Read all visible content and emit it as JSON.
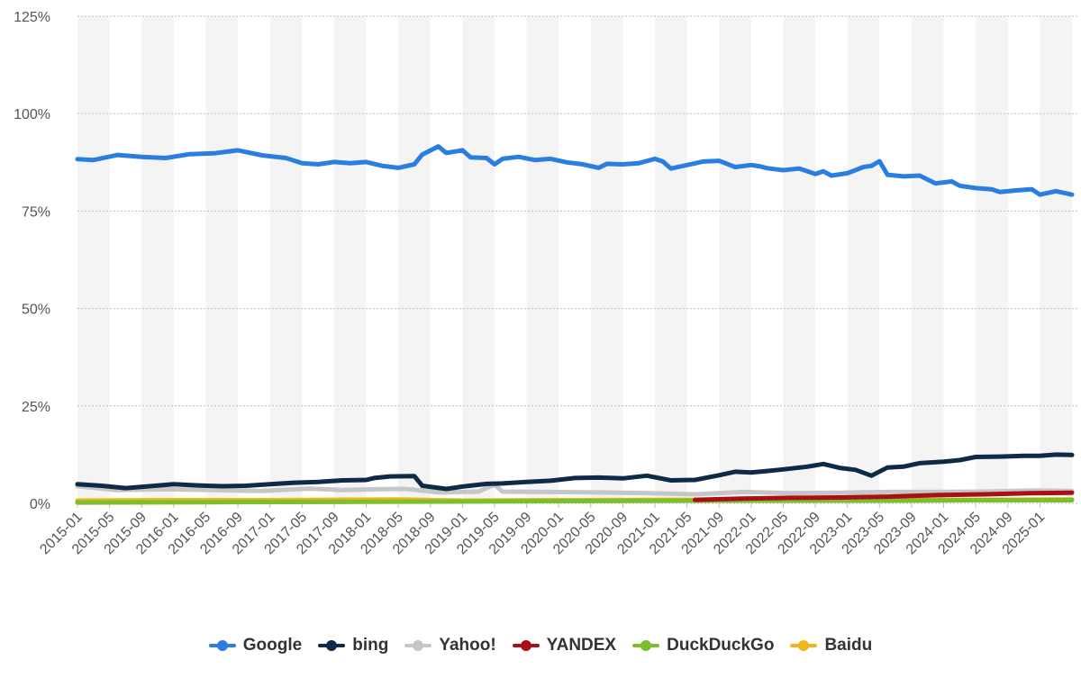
{
  "chart_data": {
    "type": "line",
    "title": "",
    "xlabel": "",
    "ylabel": "",
    "ylim": [
      0,
      125
    ],
    "y_ticks": [
      "0%",
      "25%",
      "50%",
      "75%",
      "100%",
      "125%"
    ],
    "y_tick_values": [
      0,
      25,
      50,
      75,
      100,
      125
    ],
    "x_range": [
      "2015-01",
      "2025-05"
    ],
    "x_tick_labels": [
      "2015-01",
      "2015-05",
      "2015-09",
      "2016-01",
      "2016-05",
      "2016-09",
      "2017-01",
      "2017-05",
      "2017-09",
      "2018-01",
      "2018-05",
      "2018-09",
      "2019-01",
      "2019-05",
      "2019-09",
      "2020-01",
      "2020-05",
      "2020-09",
      "2021-01",
      "2021-05",
      "2021-09",
      "2022-01",
      "2022-05",
      "2022-09",
      "2023-01",
      "2023-05",
      "2023-09",
      "2024-01",
      "2024-05",
      "2024-09",
      "2025-01"
    ],
    "grid": "horizontal dotted",
    "legend_position": "bottom",
    "series": [
      {
        "name": "Google",
        "color": "#2a7de1",
        "points": [
          [
            "2015-01",
            88.3
          ],
          [
            "2015-03",
            88.1
          ],
          [
            "2015-06",
            89.4
          ],
          [
            "2015-09",
            88.9
          ],
          [
            "2015-12",
            88.6
          ],
          [
            "2016-03",
            89.6
          ],
          [
            "2016-06",
            89.8
          ],
          [
            "2016-09",
            90.6
          ],
          [
            "2016-12",
            89.3
          ],
          [
            "2017-03",
            88.6
          ],
          [
            "2017-05",
            87.3
          ],
          [
            "2017-07",
            87.0
          ],
          [
            "2017-09",
            87.6
          ],
          [
            "2017-11",
            87.3
          ],
          [
            "2018-01",
            87.6
          ],
          [
            "2018-03",
            86.6
          ],
          [
            "2018-05",
            86.1
          ],
          [
            "2018-07",
            87.0
          ],
          [
            "2018-08",
            89.5
          ],
          [
            "2018-10",
            91.6
          ],
          [
            "2018-11",
            89.9
          ],
          [
            "2019-01",
            90.6
          ],
          [
            "2019-02",
            88.8
          ],
          [
            "2019-04",
            88.6
          ],
          [
            "2019-05",
            87.0
          ],
          [
            "2019-06",
            88.4
          ],
          [
            "2019-08",
            88.9
          ],
          [
            "2019-10",
            88.1
          ],
          [
            "2019-12",
            88.4
          ],
          [
            "2020-02",
            87.5
          ],
          [
            "2020-04",
            87.0
          ],
          [
            "2020-06",
            86.1
          ],
          [
            "2020-07",
            87.1
          ],
          [
            "2020-09",
            87.0
          ],
          [
            "2020-11",
            87.3
          ],
          [
            "2021-01",
            88.4
          ],
          [
            "2021-02",
            87.7
          ],
          [
            "2021-03",
            85.9
          ],
          [
            "2021-05",
            86.8
          ],
          [
            "2021-07",
            87.7
          ],
          [
            "2021-09",
            87.9
          ],
          [
            "2021-11",
            86.3
          ],
          [
            "2022-01",
            86.8
          ],
          [
            "2022-02",
            86.5
          ],
          [
            "2022-03",
            86.0
          ],
          [
            "2022-05",
            85.5
          ],
          [
            "2022-07",
            85.9
          ],
          [
            "2022-09",
            84.5
          ],
          [
            "2022-10",
            85.2
          ],
          [
            "2022-11",
            84.1
          ],
          [
            "2023-01",
            84.7
          ],
          [
            "2023-03",
            86.3
          ],
          [
            "2023-04",
            86.6
          ],
          [
            "2023-05",
            87.8
          ],
          [
            "2023-06",
            84.3
          ],
          [
            "2023-08",
            83.9
          ],
          [
            "2023-10",
            84.1
          ],
          [
            "2023-12",
            82.1
          ],
          [
            "2024-02",
            82.6
          ],
          [
            "2024-03",
            81.5
          ],
          [
            "2024-05",
            80.9
          ],
          [
            "2024-07",
            80.6
          ],
          [
            "2024-08",
            79.9
          ],
          [
            "2024-10",
            80.3
          ],
          [
            "2024-12",
            80.6
          ],
          [
            "2025-01",
            79.2
          ],
          [
            "2025-03",
            80.1
          ],
          [
            "2025-05",
            79.2
          ]
        ]
      },
      {
        "name": "bing",
        "color": "#0f2a47",
        "points": [
          [
            "2015-01",
            4.9
          ],
          [
            "2015-04",
            4.5
          ],
          [
            "2015-07",
            3.9
          ],
          [
            "2015-10",
            4.4
          ],
          [
            "2016-01",
            4.9
          ],
          [
            "2016-04",
            4.6
          ],
          [
            "2016-07",
            4.4
          ],
          [
            "2016-10",
            4.5
          ],
          [
            "2017-01",
            4.9
          ],
          [
            "2017-04",
            5.3
          ],
          [
            "2017-07",
            5.5
          ],
          [
            "2017-10",
            5.9
          ],
          [
            "2018-01",
            6.0
          ],
          [
            "2018-02",
            6.5
          ],
          [
            "2018-04",
            6.9
          ],
          [
            "2018-07",
            7.0
          ],
          [
            "2018-08",
            4.5
          ],
          [
            "2018-11",
            3.7
          ],
          [
            "2019-01",
            4.3
          ],
          [
            "2019-04",
            5.0
          ],
          [
            "2019-06",
            5.1
          ],
          [
            "2019-09",
            5.5
          ],
          [
            "2019-12",
            5.8
          ],
          [
            "2020-03",
            6.5
          ],
          [
            "2020-06",
            6.6
          ],
          [
            "2020-09",
            6.4
          ],
          [
            "2020-12",
            7.1
          ],
          [
            "2021-03",
            5.9
          ],
          [
            "2021-06",
            6.0
          ],
          [
            "2021-09",
            7.2
          ],
          [
            "2021-11",
            8.1
          ],
          [
            "2022-01",
            7.9
          ],
          [
            "2022-03",
            8.3
          ],
          [
            "2022-05",
            8.7
          ],
          [
            "2022-08",
            9.4
          ],
          [
            "2022-10",
            10.1
          ],
          [
            "2022-12",
            9.1
          ],
          [
            "2023-02",
            8.6
          ],
          [
            "2023-04",
            7.1
          ],
          [
            "2023-06",
            9.2
          ],
          [
            "2023-08",
            9.4
          ],
          [
            "2023-10",
            10.3
          ],
          [
            "2024-01",
            10.7
          ],
          [
            "2024-03",
            11.1
          ],
          [
            "2024-05",
            11.9
          ],
          [
            "2024-08",
            12.0
          ],
          [
            "2024-11",
            12.2
          ],
          [
            "2025-01",
            12.2
          ],
          [
            "2025-03",
            12.5
          ],
          [
            "2025-05",
            12.4
          ]
        ]
      },
      {
        "name": "Yahoo!",
        "color": "#c6c6c6",
        "points": [
          [
            "2015-01",
            4.4
          ],
          [
            "2015-06",
            3.4
          ],
          [
            "2015-12",
            3.6
          ],
          [
            "2016-06",
            3.4
          ],
          [
            "2016-12",
            3.2
          ],
          [
            "2017-06",
            3.8
          ],
          [
            "2017-10",
            3.4
          ],
          [
            "2018-02",
            3.6
          ],
          [
            "2018-06",
            3.7
          ],
          [
            "2018-10",
            2.8
          ],
          [
            "2019-03",
            3.0
          ],
          [
            "2019-05",
            4.8
          ],
          [
            "2019-06",
            3.0
          ],
          [
            "2019-12",
            2.9
          ],
          [
            "2020-06",
            2.8
          ],
          [
            "2020-12",
            2.6
          ],
          [
            "2021-06",
            2.3
          ],
          [
            "2021-12",
            2.9
          ],
          [
            "2022-06",
            2.6
          ],
          [
            "2022-12",
            2.7
          ],
          [
            "2023-06",
            2.9
          ],
          [
            "2023-12",
            2.9
          ],
          [
            "2024-06",
            3.0
          ],
          [
            "2024-12",
            3.3
          ],
          [
            "2025-05",
            3.2
          ]
        ]
      },
      {
        "name": "YANDEX",
        "color": "#a90f15",
        "points": [
          [
            "2021-06",
            0.9
          ],
          [
            "2021-12",
            1.2
          ],
          [
            "2022-06",
            1.4
          ],
          [
            "2022-12",
            1.5
          ],
          [
            "2023-06",
            1.7
          ],
          [
            "2023-12",
            2.1
          ],
          [
            "2024-06",
            2.3
          ],
          [
            "2024-12",
            2.6
          ],
          [
            "2025-05",
            2.7
          ]
        ]
      },
      {
        "name": "DuckDuckGo",
        "color": "#7bbf2a",
        "points": [
          [
            "2015-01",
            0.2
          ],
          [
            "2016-06",
            0.3
          ],
          [
            "2018-01",
            0.4
          ],
          [
            "2019-06",
            0.5
          ],
          [
            "2020-06",
            0.6
          ],
          [
            "2021-06",
            0.7
          ],
          [
            "2022-06",
            0.7
          ],
          [
            "2023-06",
            0.7
          ],
          [
            "2024-06",
            0.8
          ],
          [
            "2025-05",
            0.8
          ]
        ]
      },
      {
        "name": "Baidu",
        "color": "#f1b61b",
        "points": [
          [
            "2015-01",
            0.7
          ],
          [
            "2016-01",
            0.8
          ],
          [
            "2017-01",
            0.8
          ],
          [
            "2018-05",
            1.0
          ],
          [
            "2019-01",
            0.7
          ],
          [
            "2020-01",
            0.8
          ],
          [
            "2021-01",
            0.9
          ],
          [
            "2022-01",
            0.9
          ],
          [
            "2022-12",
            0.9
          ],
          [
            "2023-06",
            0.9
          ],
          [
            "2024-06",
            0.9
          ],
          [
            "2025-05",
            1.0
          ]
        ]
      }
    ]
  }
}
